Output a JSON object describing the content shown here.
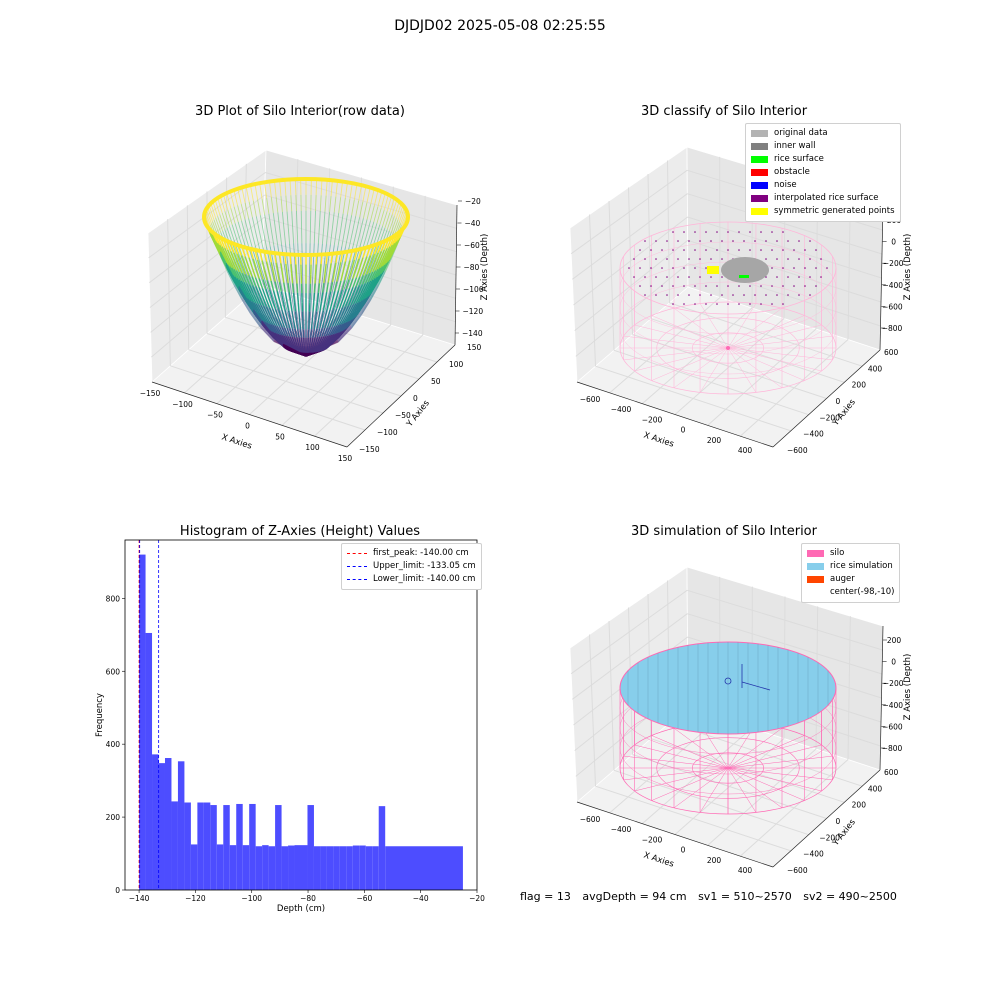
{
  "figure": {
    "suptitle": "DJDJD02 2025-05-08 02:25:55"
  },
  "chart_data": [
    {
      "type": "scatter",
      "title": "3D Plot of Silo Interior(row data)",
      "xlabel": "X Axies",
      "ylabel": "Y Axies",
      "zlabel": "Z Axies (Depth)",
      "x_ticks": [
        "−150",
        "−100",
        "−50",
        "0",
        "50",
        "100",
        "150"
      ],
      "y_ticks": [
        "−150",
        "−100",
        "−50",
        "0",
        "50",
        "100",
        "150"
      ],
      "z_ticks": [
        "−140",
        "−120",
        "−100",
        "−80",
        "−60",
        "−40",
        "−20"
      ],
      "xlim": [
        -150,
        150
      ],
      "ylim": [
        -150,
        150
      ],
      "zlim": [
        -145,
        -20
      ],
      "surface": {
        "shape": "paraboloid bowl",
        "colormap": "viridis",
        "z_bottom": -140,
        "z_rim": -25,
        "radius": 100
      }
    },
    {
      "type": "scatter",
      "title": "3D classify of Silo Interior",
      "xlabel": "X Axies",
      "ylabel": "Y Axies",
      "zlabel": "Z Axies (Depth)",
      "x_ticks": [
        "−600",
        "−400",
        "−200",
        "0",
        "200",
        "400"
      ],
      "y_ticks": [
        "−600",
        "−400",
        "−200",
        "0",
        "200",
        "400",
        "600"
      ],
      "z_ticks": [
        "−800",
        "−600",
        "−400",
        "−200",
        "0",
        "200"
      ],
      "legend": {
        "placement": "top-right",
        "items": [
          {
            "label": "original data",
            "color": "#b3b3b3"
          },
          {
            "label": "inner wall",
            "color": "#808080"
          },
          {
            "label": "rice surface",
            "color": "#00ff00"
          },
          {
            "label": "obstacle",
            "color": "#ff0000"
          },
          {
            "label": "noise",
            "color": "#0000ff"
          },
          {
            "label": "interpolated rice surface",
            "color": "#800080"
          },
          {
            "label": "symmetric generated points",
            "color": "#ffff00"
          }
        ]
      }
    },
    {
      "type": "bar",
      "title": "Histogram of Z-Axies (Height) Values",
      "xlabel": "Depth (cm)",
      "ylabel": "Frequency",
      "xlim": [
        -145,
        -20
      ],
      "ylim": [
        0,
        960
      ],
      "x_ticks": [
        -140,
        -120,
        -100,
        -80,
        -60,
        -40,
        -20
      ],
      "y_ticks": [
        0,
        200,
        400,
        600,
        800
      ],
      "bar_color": "#4d4dff",
      "bins": [
        [
          -140,
          -137.7,
          920
        ],
        [
          -137.7,
          -135.4,
          705
        ],
        [
          -135.4,
          -133.1,
          372
        ],
        [
          -133.1,
          -130.8,
          348
        ],
        [
          -130.8,
          -128.5,
          362
        ],
        [
          -128.5,
          -126.2,
          243
        ],
        [
          -126.2,
          -123.9,
          353
        ],
        [
          -123.9,
          -121.6,
          240
        ],
        [
          -121.6,
          -119.3,
          125
        ],
        [
          -119.3,
          -117.0,
          240
        ],
        [
          -117.0,
          -114.7,
          240
        ],
        [
          -114.7,
          -112.4,
          233
        ],
        [
          -112.4,
          -110.1,
          125
        ],
        [
          -110.1,
          -107.8,
          233
        ],
        [
          -107.8,
          -105.5,
          123
        ],
        [
          -105.5,
          -103.2,
          236
        ],
        [
          -103.2,
          -100.9,
          123
        ],
        [
          -100.9,
          -98.6,
          236
        ],
        [
          -98.6,
          -96.3,
          120
        ],
        [
          -96.3,
          -94.0,
          123
        ],
        [
          -94.0,
          -91.7,
          120
        ],
        [
          -91.7,
          -89.4,
          233
        ],
        [
          -89.4,
          -87.1,
          120
        ],
        [
          -87.1,
          -84.8,
          122
        ],
        [
          -84.8,
          -82.5,
          123
        ],
        [
          -82.5,
          -80.2,
          123
        ],
        [
          -80.2,
          -77.9,
          233
        ],
        [
          -77.9,
          -75.6,
          120
        ],
        [
          -75.6,
          -73.3,
          120
        ],
        [
          -73.3,
          -71.0,
          120
        ],
        [
          -71.0,
          -68.7,
          120
        ],
        [
          -68.7,
          -66.4,
          120
        ],
        [
          -66.4,
          -64.1,
          120
        ],
        [
          -64.1,
          -61.8,
          122
        ],
        [
          -61.8,
          -59.5,
          122
        ],
        [
          -59.5,
          -57.2,
          120
        ],
        [
          -57.2,
          -54.9,
          120
        ],
        [
          -54.9,
          -52.6,
          230
        ],
        [
          -52.6,
          -25.0,
          120
        ]
      ],
      "vlines": [
        {
          "label": "first_peak: -140.00 cm",
          "x": -140.0,
          "color": "#ff0000"
        },
        {
          "label": "Upper_limit: -133.05 cm",
          "x": -133.05,
          "color": "#0000ff"
        },
        {
          "label": "Lower_limit: -140.00 cm",
          "x": -140.0,
          "color": "#0000ff"
        }
      ],
      "legend_placement": "top-right"
    },
    {
      "type": "scatter",
      "title": "3D simulation of Silo Interior",
      "xlabel": "X Axies",
      "ylabel": "Y Axies",
      "zlabel": "Z Axies (Depth)",
      "x_ticks": [
        "−600",
        "−400",
        "−200",
        "0",
        "200",
        "400"
      ],
      "y_ticks": [
        "−600",
        "−400",
        "−200",
        "0",
        "200",
        "400",
        "600"
      ],
      "z_ticks": [
        "−800",
        "−600",
        "−400",
        "−200",
        "0",
        "200"
      ],
      "legend": {
        "placement": "top-right",
        "items": [
          {
            "label": "silo",
            "color": "#ff69b4"
          },
          {
            "label": "rice simulation",
            "color": "#87ceeb"
          },
          {
            "label": "auger",
            "color": "#ff4500"
          },
          {
            "label": "center(-98,-10)",
            "color": ""
          }
        ]
      }
    }
  ],
  "footer": {
    "flag": "flag = 13",
    "avg_depth": "avgDepth = 94 cm",
    "sv1": "sv1 = 510~2570",
    "sv2": "sv2 = 490~2500"
  }
}
